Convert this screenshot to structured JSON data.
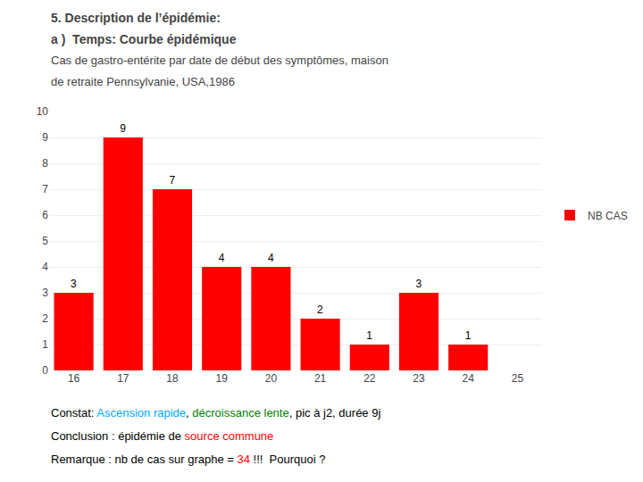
{
  "chart_data": {
    "type": "bar",
    "title": [
      "5. Description de l’épidémie:",
      "a )  Temps: Courbe épidémique"
    ],
    "subtitle": [
      "Cas de gastro-entérite par date de début des symptômes, maison",
      "de retraite Pennsylvanie, USA,1986"
    ],
    "categories": [
      16,
      17,
      18,
      19,
      20,
      21,
      22,
      23,
      24,
      25
    ],
    "series": [
      {
        "name": "NB CAS",
        "color": "#ff0000",
        "values": [
          3,
          9,
          7,
          4,
          4,
          2,
          1,
          3,
          1,
          0
        ]
      }
    ],
    "value_labels": [
      "3",
      "9",
      "7",
      "4",
      "4",
      "2",
      "1",
      "3",
      "1",
      null
    ],
    "data_labels": true,
    "ylim": [
      0,
      10
    ],
    "yticks": [
      0,
      1,
      2,
      3,
      4,
      5,
      6,
      7,
      8,
      9,
      10
    ],
    "grid": true,
    "legend": "right",
    "annotations": [
      [
        {
          "text": "Constat",
          "color": "#000000"
        },
        {
          "text": ": ",
          "color": "#000000"
        },
        {
          "text": "Ascension rapide",
          "color": "#00aaff"
        },
        {
          "text": ", ",
          "color": "#000000"
        },
        {
          "text": "décroissance lente",
          "color": "#008000"
        },
        {
          "text": ", pic à j2, durée 9j",
          "color": "#000000"
        }
      ],
      [
        {
          "text": "Conclusion",
          "color": "#000000"
        },
        {
          "text": " : épidémie de ",
          "color": "#000000"
        },
        {
          "text": "source commune",
          "color": "#ff0000"
        }
      ],
      [
        {
          "text": "Remarque : nb de cas sur graphe = ",
          "color": "#000000"
        },
        {
          "text": "34",
          "color": "#ff0000"
        },
        {
          "text": " !!!  Pourquoi ?",
          "color": "#000000"
        }
      ]
    ]
  }
}
